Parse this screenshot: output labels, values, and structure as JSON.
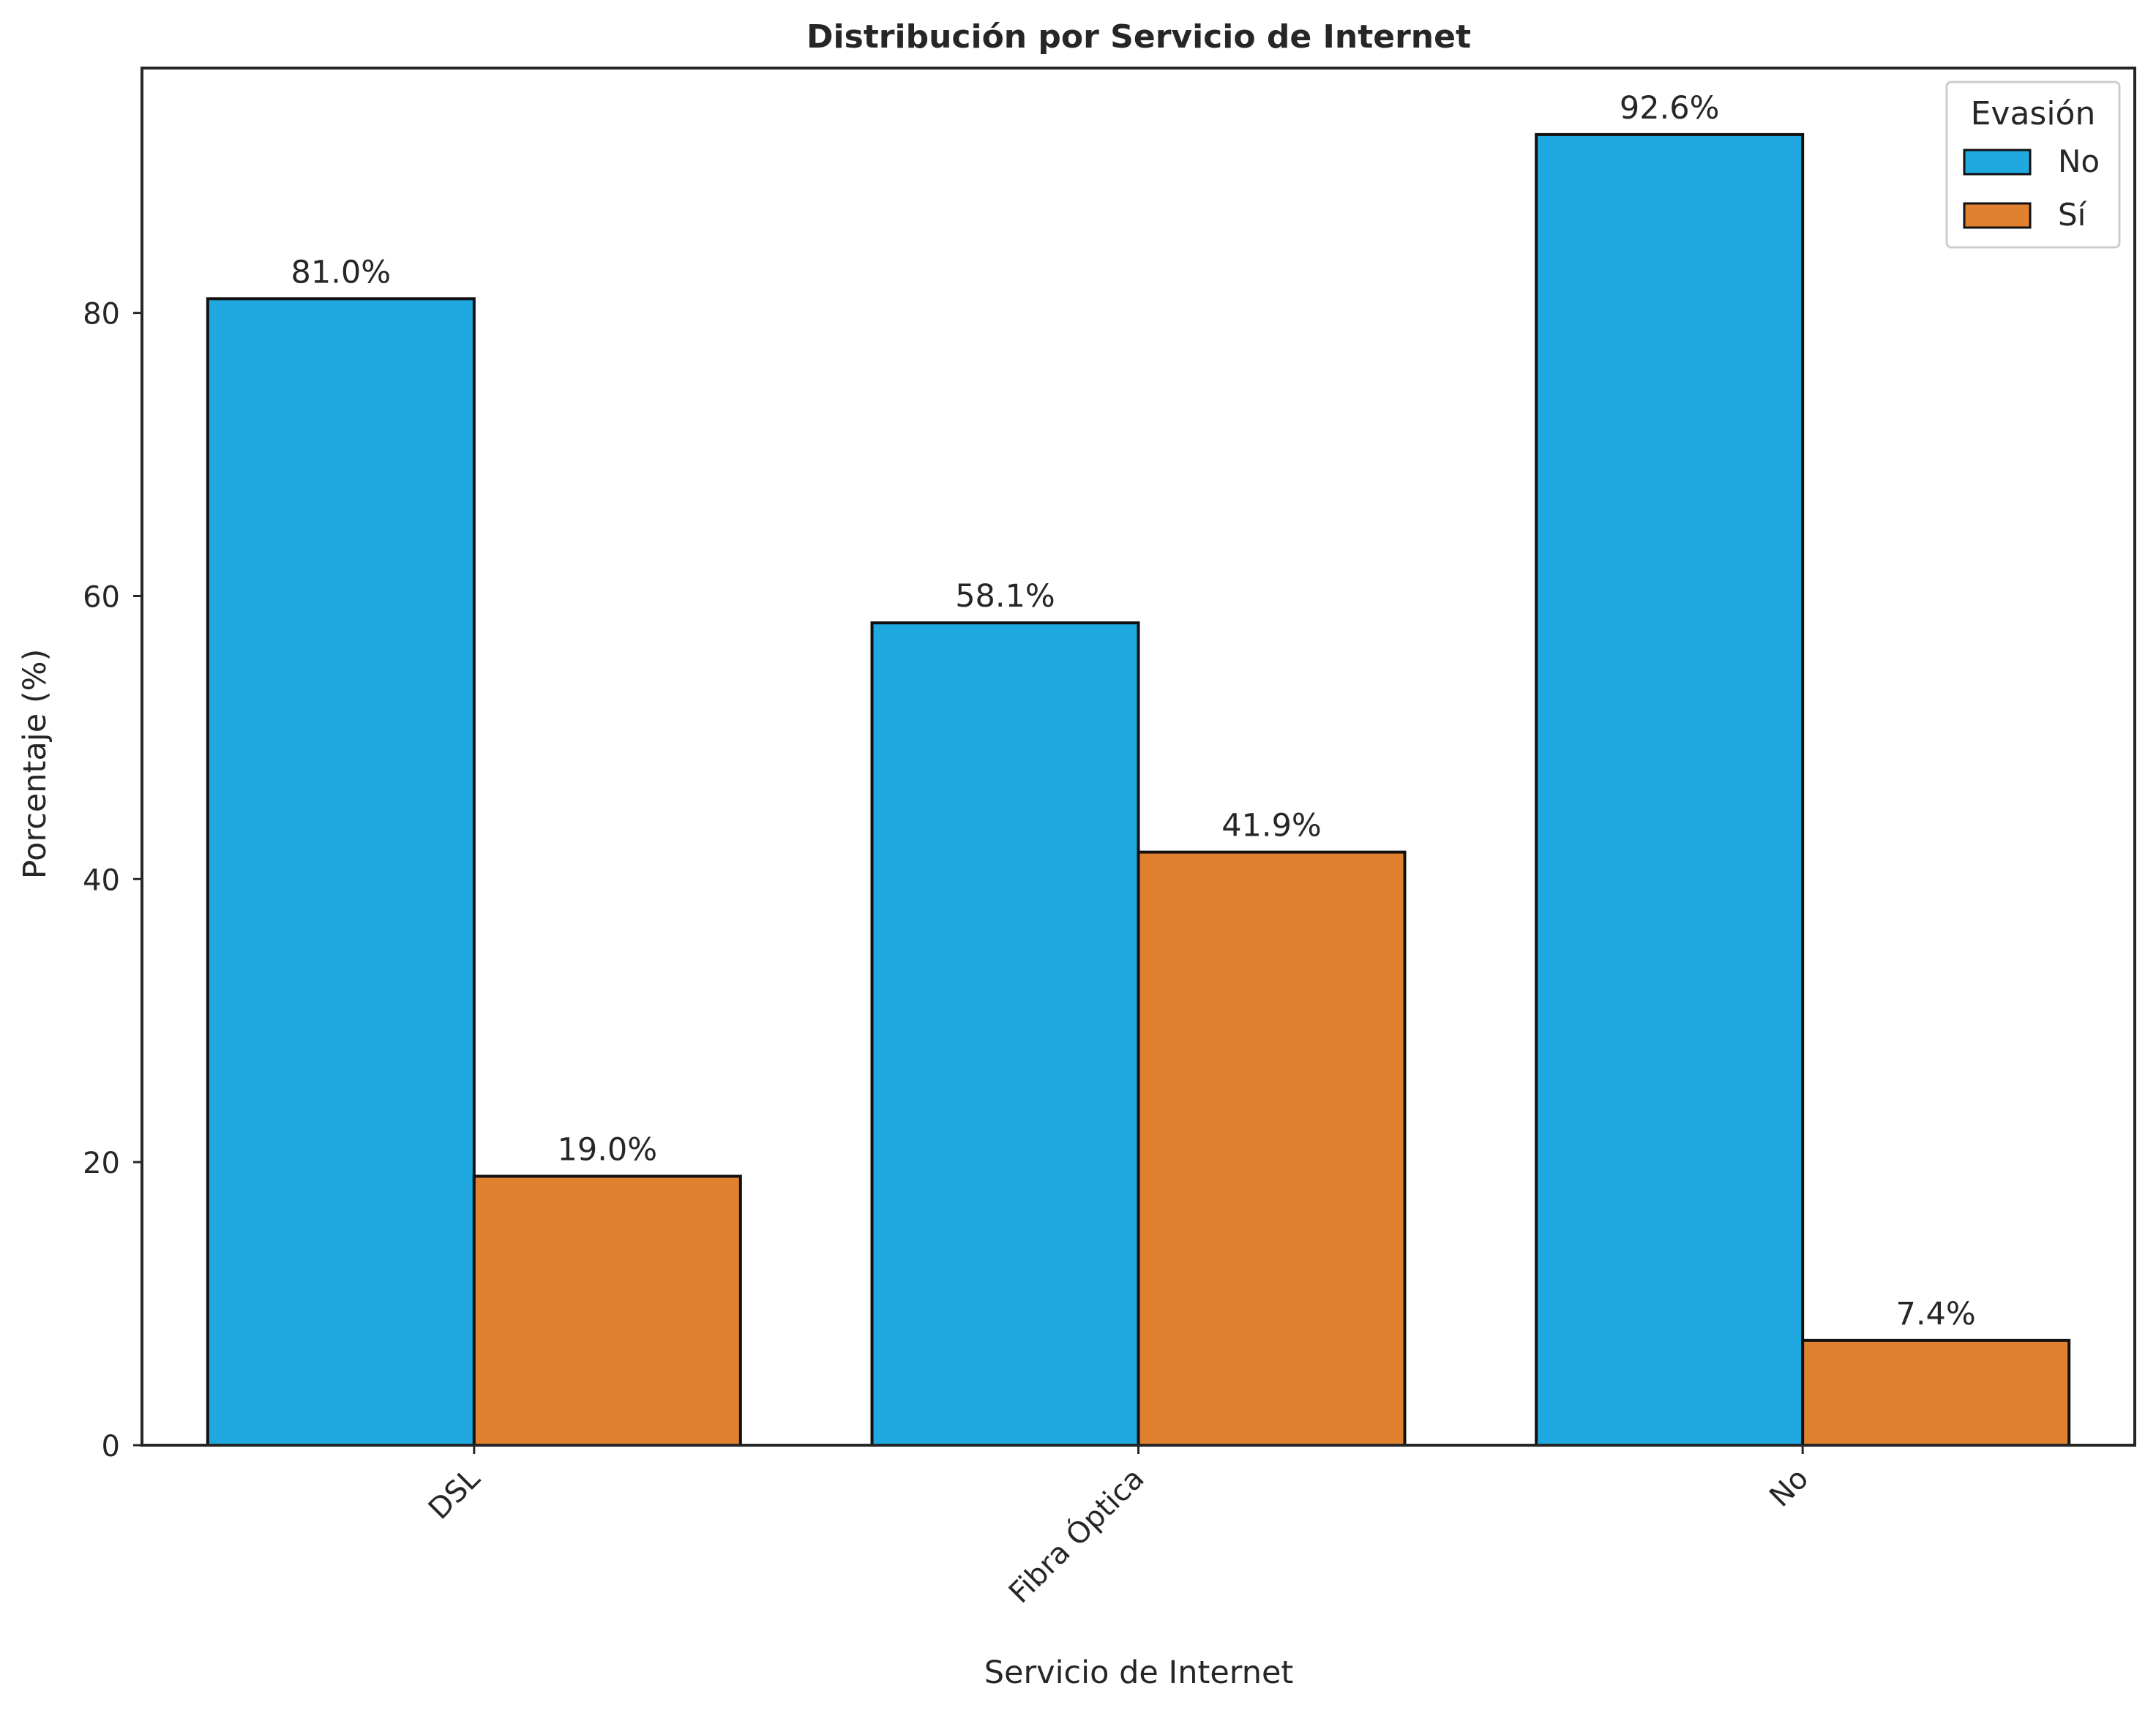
{
  "chart_data": {
    "type": "bar",
    "title": "Distribución por Servicio de Internet",
    "xlabel": "Servicio de Internet",
    "ylabel": "Porcentaje (%)",
    "categories": [
      "DSL",
      "Fibra Óptica",
      "No"
    ],
    "series": [
      {
        "name": "No",
        "color": "#1fa9e0",
        "values": [
          81.0,
          58.1,
          92.6
        ],
        "labels": [
          "81.0%",
          "58.1%",
          "92.6%"
        ]
      },
      {
        "name": "Sí",
        "color": "#e0812f",
        "values": [
          19.0,
          41.9,
          7.4
        ],
        "labels": [
          "19.0%",
          "41.9%",
          "7.4%"
        ]
      }
    ],
    "ylim": [
      0,
      97.3
    ],
    "yticks": [
      0,
      20,
      40,
      60,
      80
    ],
    "legend": {
      "title": "Evasión",
      "position": "top-right"
    },
    "grid": false
  }
}
